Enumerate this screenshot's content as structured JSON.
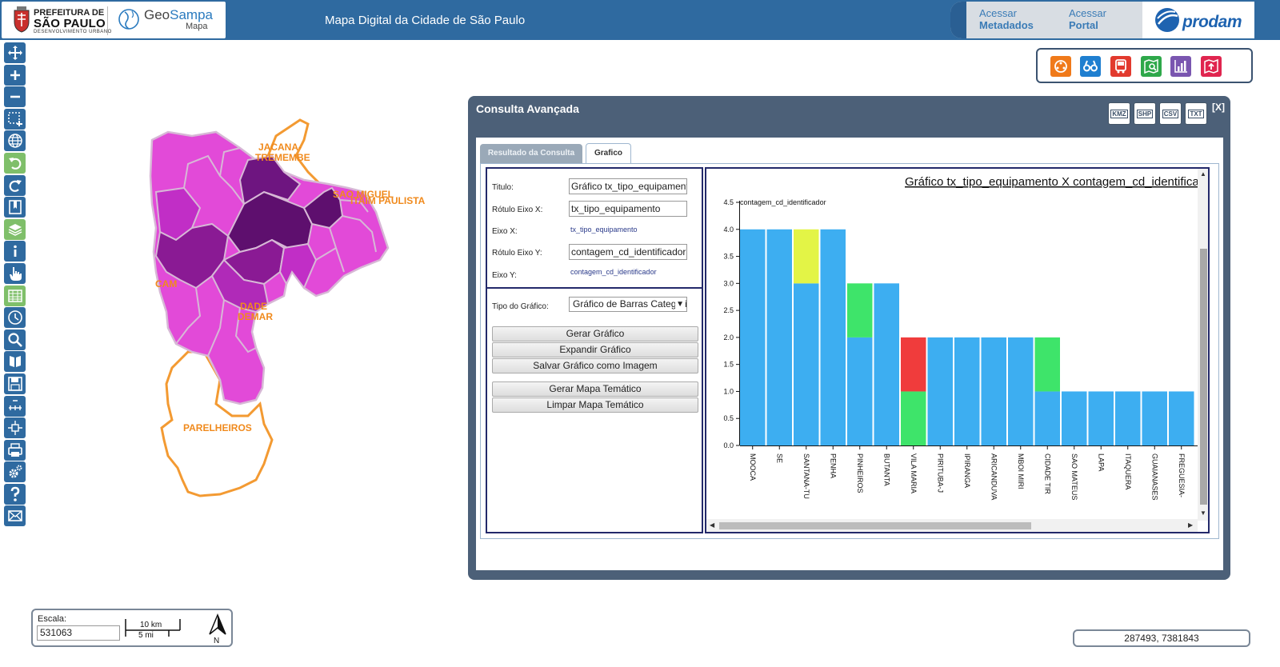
{
  "header": {
    "pref_line1": "PREFEITURA DE",
    "pref_line2": "SÃO PAULO",
    "pref_line3": "DESENVOLVIMENTO URBANO",
    "geo_part1": "Geo",
    "geo_part2": "Sampa",
    "geo_sub": "Mapa",
    "app_title": "Mapa Digital da Cidade de São Paulo",
    "meta_line1": "Acessar",
    "meta_line2": "Metadados",
    "portal_line1": "Acessar",
    "portal_line2": "Portal",
    "prodam": "prodam"
  },
  "toolbar_icons": [
    "pan-icon",
    "zoom-in-icon",
    "zoom-out-icon",
    "zoom-box-icon",
    "globe-icon",
    "undo-icon",
    "redo-icon",
    "bookmark-icon",
    "layers-icon",
    "info-icon",
    "hand-pointer-icon",
    "table-icon",
    "clock-icon",
    "search-icon",
    "download-icon",
    "save-icon",
    "measure-icon",
    "coordinate-icon",
    "print-icon",
    "settings-icon",
    "help-icon",
    "mail-icon"
  ],
  "top_tools": [
    {
      "name": "movie-tool-icon",
      "color": "#f07a1a"
    },
    {
      "name": "binoculars-tool-icon",
      "color": "#1f7fd0"
    },
    {
      "name": "bus-tool-icon",
      "color": "#e23a2e"
    },
    {
      "name": "map-search-tool-icon",
      "color": "#2ea84a"
    },
    {
      "name": "chart-tool-icon",
      "color": "#7a56b0"
    },
    {
      "name": "map-upload-tool-icon",
      "color": "#e0254f"
    }
  ],
  "map_labels": {
    "jacana1": "JACANA-",
    "jacana2": "TREMEMBE",
    "saomiguel": "SAO MIGUEL",
    "itaim": "ITAIM PAULISTA",
    "cam": "CAM",
    "dade": "DADE",
    "demar": "DEMAR",
    "parelheiros": "PARELHEIROS"
  },
  "scale": {
    "label": "Escala:",
    "value": "531063",
    "bar_km": "10 km",
    "bar_mi": "5 mi",
    "north": "N"
  },
  "coords": "287493, 7381843",
  "dialog": {
    "title": "Consulta Avançada",
    "exports": [
      "KMZ",
      "SHP",
      "CSV",
      "TXT"
    ],
    "close": "[X]",
    "tab_result": "Resultado da Consulta",
    "tab_grafico": "Grafico",
    "form": {
      "titulo_label": "Titulo:",
      "titulo_value": "Gráfico tx_tipo_equipamento X contagem_cd_identificador",
      "rotx_label": "Rótulo Eixo X:",
      "rotx_value": "tx_tipo_equipamento",
      "eixox_label": "Eixo X:",
      "eixox_value": "tx_tipo_equipamento",
      "roty_label": "Rótulo Eixo Y:",
      "roty_value": "contagem_cd_identificador",
      "eixoy_label": "Eixo Y:",
      "eixoy_value": "contagem_cd_identificador",
      "tipo_label": "Tipo do Gráfico:",
      "tipo_value": "Gráfico de Barras Categorizado",
      "btn_gerar": "Gerar Gráfico",
      "btn_expandir": "Expandir Gráfico",
      "btn_salvar": "Salvar Gráfico como Imagem",
      "btn_mapa": "Gerar Mapa Temático",
      "btn_limpar": "Limpar Mapa Temático"
    }
  },
  "chart_data": {
    "type": "bar",
    "stacked": true,
    "title": "Gráfico tx_tipo_equipamento X contagem_cd_identificador",
    "ylabel": "contagem_cd_identificador",
    "ylim": [
      0,
      4.5
    ],
    "yticks": [
      "0.0",
      "0.5",
      "1.0",
      "1.5",
      "2.0",
      "2.5",
      "3.0",
      "3.5",
      "4.0",
      "4.5"
    ],
    "categories": [
      "MOOCA",
      "SE",
      "SANTANA-TU",
      "PENHA",
      "PINHEIROS",
      "BUTANTA",
      "VILA MARIA",
      "PIRITUBA-J",
      "IPIRANGA",
      "ARICANDUVA",
      "MBOI MIRI",
      "CIDADE TIR",
      "SAO MATEUS",
      "LAPA",
      "ITAQUERA",
      "GUAIANASES",
      "FREGUESIA-"
    ],
    "series": [
      {
        "color": "#3daef1",
        "values": [
          4,
          4,
          3,
          4,
          2,
          3,
          0,
          2,
          2,
          2,
          2,
          1,
          1,
          1,
          1,
          1,
          1
        ]
      },
      {
        "color": "#3ee46a",
        "values": [
          0,
          0,
          0,
          0,
          1,
          0,
          1,
          0,
          0,
          0,
          0,
          1,
          0,
          0,
          0,
          0,
          0
        ]
      },
      {
        "color": "#e3f446",
        "values": [
          0,
          0,
          1,
          0,
          0,
          0,
          0,
          0,
          0,
          0,
          0,
          0,
          0,
          0,
          0,
          0,
          0
        ]
      },
      {
        "color": "#f03c3c",
        "values": [
          0,
          0,
          0,
          0,
          0,
          0,
          1,
          0,
          0,
          0,
          0,
          0,
          0,
          0,
          0,
          0,
          0
        ]
      }
    ]
  }
}
